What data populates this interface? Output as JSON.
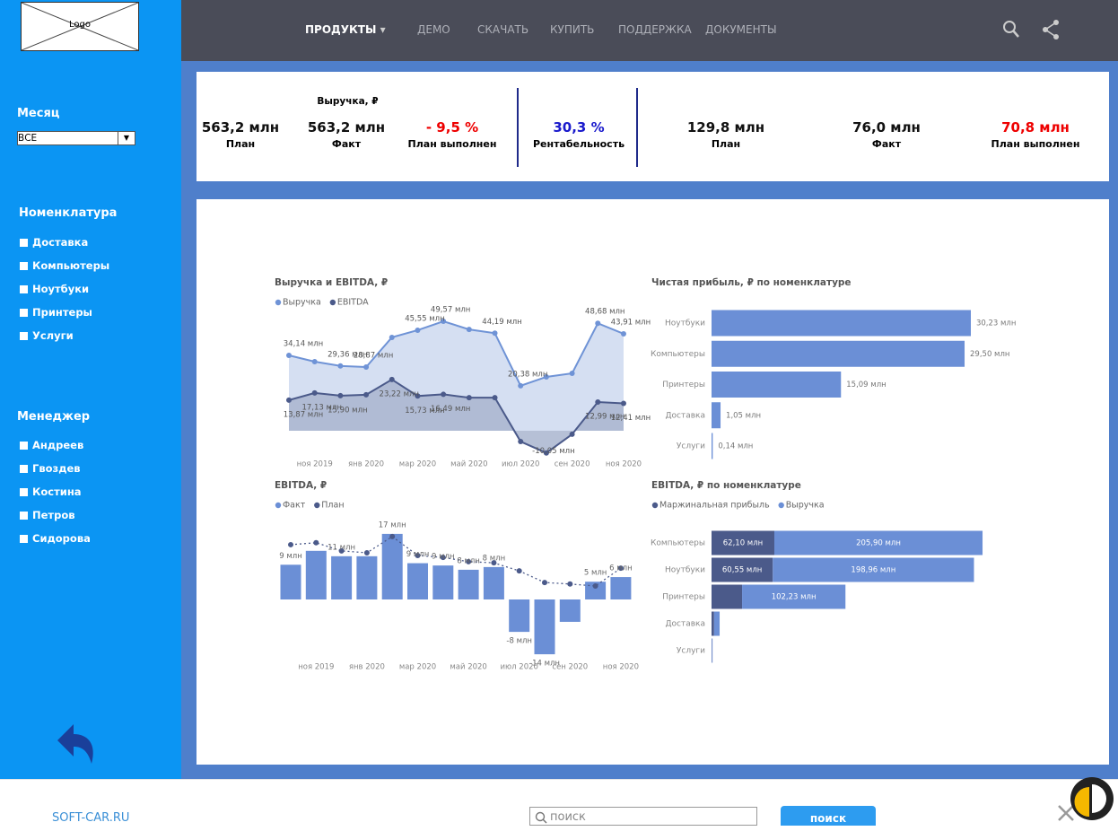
{
  "logo": "Logo",
  "nav": {
    "items": [
      "ПРОДУКТЫ",
      "ДЕМО",
      "СКАЧАТЬ",
      "КУПИТЬ",
      "ПОДДЕРЖКА",
      "ДОКУМЕНТЫ"
    ]
  },
  "filters": {
    "month": {
      "label": "Месяц",
      "value": "ВСЕ"
    },
    "nomenclature": {
      "label": "Номенклатура",
      "options": [
        "Доставка",
        "Компьютеры",
        "Ноутбуки",
        "Принтеры",
        "Услуги"
      ]
    },
    "manager": {
      "label": "Менеджер",
      "options": [
        "Андреев",
        "Гвоздев",
        "Костина",
        "Петров",
        "Сидорова"
      ]
    }
  },
  "kpi": {
    "revenue_title": "Выручка, ₽",
    "items": [
      {
        "value": "563,2 млн",
        "label": "План"
      },
      {
        "value": "563,2 млн",
        "label": "Факт"
      },
      {
        "value": "- 9,5 %",
        "label": "План выполнен"
      },
      {
        "value": "30,3 %",
        "label": "Рентабельность"
      },
      {
        "value": "129,8 млн",
        "label": "План"
      },
      {
        "value": "76,0 млн",
        "label": "Факт"
      },
      {
        "value": "70,8 млн",
        "label": "План выполнен"
      }
    ]
  },
  "chart_data": [
    {
      "type": "area",
      "title": "Выручка и EBITDA, ₽",
      "categories": [
        null,
        "ноя 2019",
        null,
        "янв 2020",
        null,
        "мар 2020",
        null,
        "май 2020",
        null,
        "июл 2020",
        null,
        "сен 2020",
        null,
        "ноя 2020"
      ],
      "series": [
        {
          "name": "Выручка",
          "color": "#6f93d6",
          "fill": "#d5dff2",
          "values": [
            34.14,
            31.3,
            29.36,
            28.87,
            42.3,
            45.55,
            49.57,
            45.9,
            44.19,
            20.38,
            24.4,
            26.0,
            48.68,
            43.91
          ],
          "value_labels": [
            "34,14 млн",
            null,
            "29,36 млн",
            "28,87 млн",
            null,
            "45,55 млн",
            "49,57 млн",
            null,
            "44,19 млн",
            "20,38 млн",
            null,
            null,
            "48,68 млн",
            "43,91 млн"
          ]
        },
        {
          "name": "EBITDA",
          "color": "#4b5a8a",
          "fill": "#a9b5cf",
          "values": [
            13.87,
            17.13,
            15.9,
            16.3,
            23.22,
            15.73,
            16.49,
            15.0,
            15.0,
            -4.9,
            -10.05,
            -1.6,
            12.99,
            12.41
          ],
          "value_labels": [
            "13,87 млн",
            "17,13 млн",
            "15,90 млн",
            null,
            "23,22 млн",
            "15,73 млн",
            "16,49 млн",
            null,
            null,
            null,
            "-10,05 млн",
            null,
            "12,99 млн",
            "12,41 млн"
          ]
        }
      ]
    },
    {
      "type": "hbar",
      "title": "Чистая прибыль, ₽ по номенклатуре",
      "categories": [
        "Ноутбуки",
        "Компьютеры",
        "Принтеры",
        "Доставка",
        "Услуги"
      ],
      "values": [
        30.23,
        29.5,
        15.09,
        1.05,
        0.14
      ],
      "value_labels": [
        "30,23 млн",
        "29,50 млн",
        "15,09 млн",
        "1,05 млн",
        "0,14 млн"
      ],
      "color": "#6b8fd6"
    },
    {
      "type": "bar_line",
      "title": "EBITDA, ₽",
      "categories": [
        null,
        "ноя 2019",
        null,
        "янв 2020",
        null,
        "мар 2020",
        null,
        "май 2020",
        null,
        "июл 2020",
        null,
        "сен 2020",
        null,
        "ноя 2020"
      ],
      "series": [
        {
          "name": "Факт",
          "color": "#6b8fd6",
          "values": [
            9.0,
            12.6,
            11.2,
            11.2,
            17.0,
            9.4,
            8.8,
            7.7,
            8.4,
            -8.4,
            -14.2,
            -5.8,
            4.6,
            5.8
          ],
          "value_labels": [
            "9 млн",
            null,
            "11 млн",
            null,
            "17 млн",
            "9 млн",
            "9 млн",
            "8 млн",
            "8 млн",
            "-8 млн",
            "-14 млн",
            null,
            "5 млн",
            "6 млн"
          ]
        },
        {
          "name": "План",
          "color": "#4b5a8a",
          "values": [
            14.2,
            14.7,
            12.6,
            12.1,
            16.3,
            11.4,
            10.9,
            9.8,
            9.5,
            7.4,
            4.4,
            4.0,
            3.5,
            8.1
          ]
        }
      ]
    },
    {
      "type": "stacked_hbar",
      "title": "EBITDA, ₽ по номенклатуре",
      "categories": [
        "Компьютеры",
        "Ноутбуки",
        "Принтеры",
        "Доставка",
        "Услуги"
      ],
      "series": [
        {
          "name": "Маржинальная прибыль",
          "color": "#4b5a8a",
          "values": [
            62.1,
            60.55,
            30.2,
            2.5,
            0.3
          ],
          "value_labels": [
            "62,10 млн",
            "60,55 млн",
            null,
            null,
            null
          ]
        },
        {
          "name": "Выручка",
          "color": "#6b8fd6",
          "values": [
            205.9,
            198.96,
            102.23,
            5.5,
            0.7
          ],
          "value_labels": [
            "205,90 млн",
            "198,96 млн",
            "102,23 млн",
            null,
            null
          ]
        }
      ]
    }
  ],
  "footer": {
    "site": "SOFT-CAR.RU",
    "search_placeholder": "поиск",
    "search_button": "поиск"
  }
}
